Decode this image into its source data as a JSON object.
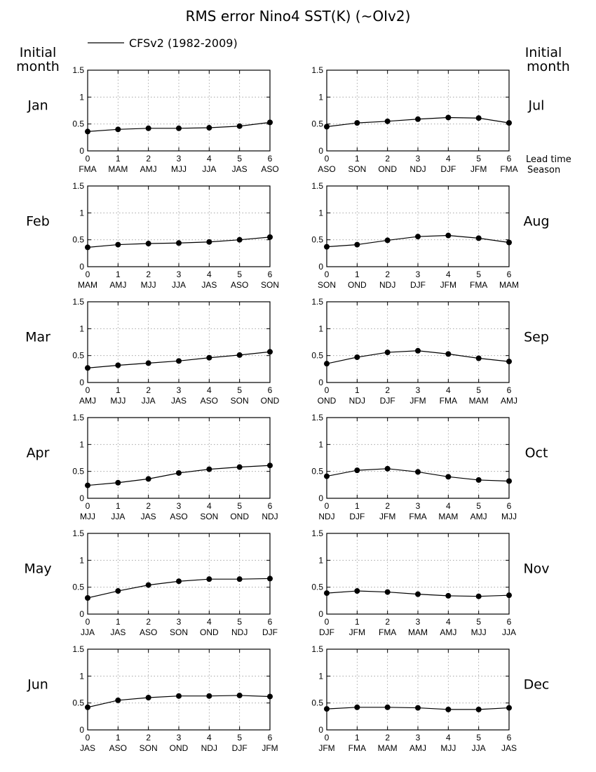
{
  "title": "RMS error Nino4 SST(K) (~OIv2)",
  "legend": {
    "label": "CFSv2 (1982-2009)",
    "position": "top-left"
  },
  "header_left": [
    "Initial",
    "month"
  ],
  "header_right": [
    "Initial",
    "month"
  ],
  "axis_note": [
    "Lead time",
    "Season"
  ],
  "colors": {
    "line": "#000000",
    "grid": "#999999",
    "background": "#ffffff"
  },
  "chart_data": [
    {
      "type": "line",
      "panel": "Jan",
      "x": [
        0,
        1,
        2,
        3,
        4,
        5,
        6
      ],
      "seasons": [
        "FMA",
        "MAM",
        "AMJ",
        "MJJ",
        "JJA",
        "JAS",
        "ASO"
      ],
      "values": [
        0.36,
        0.4,
        0.42,
        0.42,
        0.43,
        0.46,
        0.53
      ],
      "ylim": [
        0,
        1.5
      ],
      "yticks": [
        "0",
        "0.5",
        "1",
        "1.5"
      ],
      "grid": true
    },
    {
      "type": "line",
      "panel": "Feb",
      "x": [
        0,
        1,
        2,
        3,
        4,
        5,
        6
      ],
      "seasons": [
        "MAM",
        "AMJ",
        "MJJ",
        "JJA",
        "JAS",
        "ASO",
        "SON"
      ],
      "values": [
        0.36,
        0.41,
        0.43,
        0.44,
        0.46,
        0.5,
        0.55
      ],
      "ylim": [
        0,
        1.5
      ],
      "yticks": [
        "0",
        "0.5",
        "1",
        "1.5"
      ],
      "grid": true
    },
    {
      "type": "line",
      "panel": "Mar",
      "x": [
        0,
        1,
        2,
        3,
        4,
        5,
        6
      ],
      "seasons": [
        "AMJ",
        "MJJ",
        "JJA",
        "JAS",
        "ASO",
        "SON",
        "OND"
      ],
      "values": [
        0.27,
        0.32,
        0.36,
        0.4,
        0.46,
        0.51,
        0.57
      ],
      "ylim": [
        0,
        1.5
      ],
      "yticks": [
        "0",
        "0.5",
        "1",
        "1.5"
      ],
      "grid": true
    },
    {
      "type": "line",
      "panel": "Apr",
      "x": [
        0,
        1,
        2,
        3,
        4,
        5,
        6
      ],
      "seasons": [
        "MJJ",
        "JJA",
        "JAS",
        "ASO",
        "SON",
        "OND",
        "NDJ"
      ],
      "values": [
        0.24,
        0.29,
        0.36,
        0.47,
        0.54,
        0.58,
        0.61
      ],
      "ylim": [
        0,
        1.5
      ],
      "yticks": [
        "0",
        "0.5",
        "1",
        "1.5"
      ],
      "grid": true
    },
    {
      "type": "line",
      "panel": "May",
      "x": [
        0,
        1,
        2,
        3,
        4,
        5,
        6
      ],
      "seasons": [
        "JJA",
        "JAS",
        "ASO",
        "SON",
        "OND",
        "NDJ",
        "DJF"
      ],
      "values": [
        0.3,
        0.43,
        0.54,
        0.61,
        0.65,
        0.65,
        0.66
      ],
      "ylim": [
        0,
        1.5
      ],
      "yticks": [
        "0",
        "0.5",
        "1",
        "1.5"
      ],
      "grid": true
    },
    {
      "type": "line",
      "panel": "Jun",
      "x": [
        0,
        1,
        2,
        3,
        4,
        5,
        6
      ],
      "seasons": [
        "JAS",
        "ASO",
        "SON",
        "OND",
        "NDJ",
        "DJF",
        "JFM"
      ],
      "values": [
        0.42,
        0.55,
        0.6,
        0.63,
        0.63,
        0.64,
        0.62
      ],
      "ylim": [
        0,
        1.5
      ],
      "yticks": [
        "0",
        "0.5",
        "1",
        "1.5"
      ],
      "grid": true
    },
    {
      "type": "line",
      "panel": "Jul",
      "x": [
        0,
        1,
        2,
        3,
        4,
        5,
        6
      ],
      "seasons": [
        "ASO",
        "SON",
        "OND",
        "NDJ",
        "DJF",
        "JFM",
        "FMA"
      ],
      "values": [
        0.45,
        0.52,
        0.55,
        0.59,
        0.62,
        0.61,
        0.52
      ],
      "ylim": [
        0,
        1.5
      ],
      "yticks": [
        "0",
        "0.5",
        "1",
        "1.5"
      ],
      "grid": true
    },
    {
      "type": "line",
      "panel": "Aug",
      "x": [
        0,
        1,
        2,
        3,
        4,
        5,
        6
      ],
      "seasons": [
        "SON",
        "OND",
        "NDJ",
        "DJF",
        "JFM",
        "FMA",
        "MAM"
      ],
      "values": [
        0.37,
        0.41,
        0.49,
        0.56,
        0.58,
        0.53,
        0.45
      ],
      "ylim": [
        0,
        1.5
      ],
      "yticks": [
        "0",
        "0.5",
        "1",
        "1.5"
      ],
      "grid": true
    },
    {
      "type": "line",
      "panel": "Sep",
      "x": [
        0,
        1,
        2,
        3,
        4,
        5,
        6
      ],
      "seasons": [
        "OND",
        "NDJ",
        "DJF",
        "JFM",
        "FMA",
        "MAM",
        "AMJ"
      ],
      "values": [
        0.35,
        0.47,
        0.56,
        0.59,
        0.53,
        0.45,
        0.39
      ],
      "ylim": [
        0,
        1.5
      ],
      "yticks": [
        "0",
        "0.5",
        "1",
        "1.5"
      ],
      "grid": true
    },
    {
      "type": "line",
      "panel": "Oct",
      "x": [
        0,
        1,
        2,
        3,
        4,
        5,
        6
      ],
      "seasons": [
        "NDJ",
        "DJF",
        "JFM",
        "FMA",
        "MAM",
        "AMJ",
        "MJJ"
      ],
      "values": [
        0.41,
        0.52,
        0.55,
        0.49,
        0.4,
        0.34,
        0.32
      ],
      "ylim": [
        0,
        1.5
      ],
      "yticks": [
        "0",
        "0.5",
        "1",
        "1.5"
      ],
      "grid": true
    },
    {
      "type": "line",
      "panel": "Nov",
      "x": [
        0,
        1,
        2,
        3,
        4,
        5,
        6
      ],
      "seasons": [
        "DJF",
        "JFM",
        "FMA",
        "MAM",
        "AMJ",
        "MJJ",
        "JJA"
      ],
      "values": [
        0.39,
        0.43,
        0.41,
        0.37,
        0.34,
        0.33,
        0.35
      ],
      "ylim": [
        0,
        1.5
      ],
      "yticks": [
        "0",
        "0.5",
        "1",
        "1.5"
      ],
      "grid": true
    },
    {
      "type": "line",
      "panel": "Dec",
      "x": [
        0,
        1,
        2,
        3,
        4,
        5,
        6
      ],
      "seasons": [
        "JFM",
        "FMA",
        "MAM",
        "AMJ",
        "MJJ",
        "JJA",
        "JAS"
      ],
      "values": [
        0.39,
        0.42,
        0.42,
        0.41,
        0.38,
        0.38,
        0.41
      ],
      "ylim": [
        0,
        1.5
      ],
      "yticks": [
        "0",
        "0.5",
        "1",
        "1.5"
      ],
      "grid": true
    }
  ]
}
